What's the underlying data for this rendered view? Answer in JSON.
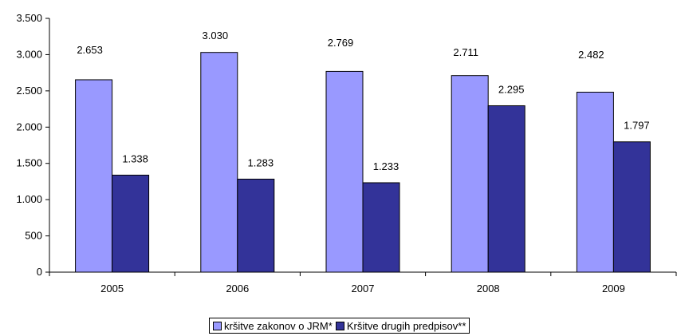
{
  "chart_data": {
    "type": "bar",
    "categories": [
      "2005",
      "2006",
      "2007",
      "2008",
      "2009"
    ],
    "series": [
      {
        "name": "kršitve zakonov o JRM*",
        "values": [
          2653,
          3030,
          2769,
          2711,
          2482
        ],
        "labels": [
          "2.653",
          "3.030",
          "2.769",
          "2.711",
          "2.482"
        ],
        "color": "#9999FF"
      },
      {
        "name": "Kršitve drugih predpisov**",
        "values": [
          1338,
          1283,
          1233,
          2295,
          1797
        ],
        "labels": [
          "1.338",
          "1.283",
          "1.233",
          "2.295",
          "1.797"
        ],
        "color": "#333399"
      }
    ],
    "title": "",
    "xlabel": "",
    "ylabel": "",
    "ylim": [
      0,
      3500
    ],
    "yticks": [
      0,
      500,
      1000,
      1500,
      2000,
      2500,
      3000,
      3500
    ],
    "ytick_labels": [
      "0",
      "500",
      "1.000",
      "1.500",
      "2.000",
      "2.500",
      "3.000",
      "3.500"
    ],
    "grid": false,
    "legend": "bottom"
  }
}
